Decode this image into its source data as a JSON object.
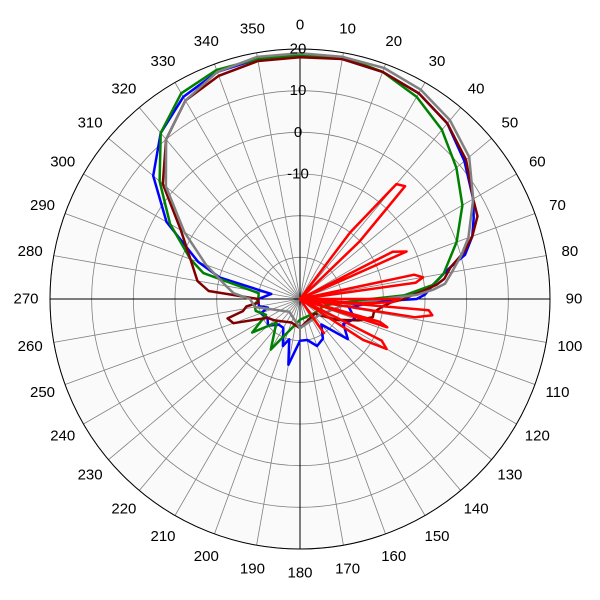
{
  "chart_data": {
    "type": "polar-line",
    "title": "",
    "angular_axis": {
      "unit": "degrees",
      "direction": "clockwise",
      "zero_at": "top",
      "tick_step": 10,
      "tick_labels": [
        "0",
        "10",
        "20",
        "30",
        "40",
        "50",
        "60",
        "70",
        "80",
        "90",
        "100",
        "110",
        "120",
        "130",
        "140",
        "150",
        "160",
        "170",
        "180",
        "190",
        "200",
        "210",
        "220",
        "230",
        "240",
        "250",
        "260",
        "270",
        "280",
        "290",
        "300",
        "310",
        "320",
        "330",
        "340",
        "350"
      ]
    },
    "radial_axis": {
      "range": [
        -40,
        20
      ],
      "ticks": [
        -10,
        0,
        10,
        20
      ],
      "tick_labels": [
        "-10",
        "0",
        "10",
        "20"
      ],
      "rings": [
        -30,
        -20,
        -10,
        0,
        10,
        20
      ],
      "grid": true
    },
    "legend": "none",
    "series": [
      {
        "color": "#0000ff",
        "points": [
          [
            0,
            18.5
          ],
          [
            10,
            18.5
          ],
          [
            20,
            18
          ],
          [
            30,
            17
          ],
          [
            40,
            15
          ],
          [
            50,
            11.5
          ],
          [
            60,
            8
          ],
          [
            65,
            6
          ],
          [
            70,
            4
          ],
          [
            75,
            1
          ],
          [
            78,
            -3
          ],
          [
            80,
            -5
          ],
          [
            82,
            -6.5
          ],
          [
            84,
            -8
          ],
          [
            86,
            -9
          ],
          [
            88,
            -10
          ],
          [
            90,
            -12
          ],
          [
            92,
            -22
          ],
          [
            100,
            -28
          ],
          [
            110,
            -26
          ],
          [
            120,
            -28
          ],
          [
            130,
            -25
          ],
          [
            140,
            -32
          ],
          [
            150,
            -29
          ],
          [
            160,
            -28
          ],
          [
            170,
            -30
          ],
          [
            180,
            -30
          ],
          [
            190,
            -24
          ],
          [
            195,
            -30
          ],
          [
            200,
            -28
          ],
          [
            210,
            -32
          ],
          [
            220,
            -32
          ],
          [
            230,
            -30
          ],
          [
            240,
            -31
          ],
          [
            250,
            -30
          ],
          [
            255,
            -32
          ],
          [
            260,
            -30
          ],
          [
            265,
            -30
          ],
          [
            270,
            -30
          ],
          [
            280,
            -33
          ],
          [
            285,
            -20
          ],
          [
            290,
            -14
          ],
          [
            300,
            -3
          ],
          [
            310,
            6
          ],
          [
            320,
            12
          ],
          [
            330,
            16
          ],
          [
            340,
            18
          ],
          [
            350,
            18.5
          ],
          [
            360,
            18.5
          ]
        ]
      },
      {
        "color": "#008000",
        "points": [
          [
            0,
            18.5
          ],
          [
            10,
            19
          ],
          [
            20,
            18
          ],
          [
            30,
            16
          ],
          [
            40,
            13
          ],
          [
            50,
            9
          ],
          [
            60,
            5
          ],
          [
            70,
            0
          ],
          [
            80,
            -5
          ],
          [
            84,
            -8
          ],
          [
            88,
            -15
          ],
          [
            90,
            -23
          ],
          [
            95,
            -30
          ],
          [
            105,
            -34
          ],
          [
            130,
            -35
          ],
          [
            180,
            -35
          ],
          [
            210,
            -26
          ],
          [
            225,
            -32
          ],
          [
            235,
            -26
          ],
          [
            245,
            -31
          ],
          [
            255,
            -29
          ],
          [
            262,
            -29
          ],
          [
            270,
            -30
          ],
          [
            278,
            -30
          ],
          [
            285,
            -16
          ],
          [
            290,
            -12
          ],
          [
            300,
            -4
          ],
          [
            310,
            4
          ],
          [
            320,
            12
          ],
          [
            330,
            17
          ],
          [
            340,
            18.5
          ],
          [
            350,
            18.5
          ],
          [
            360,
            18.5
          ]
        ]
      },
      {
        "color": "#800000",
        "points": [
          [
            0,
            18
          ],
          [
            10,
            18.5
          ],
          [
            20,
            18
          ],
          [
            30,
            17
          ],
          [
            40,
            15
          ],
          [
            50,
            12
          ],
          [
            60,
            8
          ],
          [
            65,
            7
          ],
          [
            70,
            4
          ],
          [
            74,
            1
          ],
          [
            78,
            -3
          ],
          [
            82,
            -5
          ],
          [
            84,
            -7
          ],
          [
            86,
            -10
          ],
          [
            88,
            -13
          ],
          [
            90,
            -15
          ],
          [
            92,
            -18
          ],
          [
            95,
            -20
          ],
          [
            100,
            -22
          ],
          [
            104,
            -22
          ],
          [
            110,
            -25
          ],
          [
            120,
            -30
          ],
          [
            135,
            -35
          ],
          [
            180,
            -33
          ],
          [
            200,
            -34
          ],
          [
            230,
            -32
          ],
          [
            240,
            -31
          ],
          [
            250,
            -23
          ],
          [
            255,
            -22
          ],
          [
            258,
            -26
          ],
          [
            262,
            -27
          ],
          [
            265,
            -30
          ],
          [
            270,
            -30
          ],
          [
            275,
            -18
          ],
          [
            280,
            -15
          ],
          [
            290,
            -12
          ],
          [
            300,
            -7
          ],
          [
            310,
            3
          ],
          [
            320,
            10
          ],
          [
            330,
            15
          ],
          [
            340,
            17
          ],
          [
            350,
            18
          ],
          [
            360,
            18
          ]
        ]
      },
      {
        "color": "#808080",
        "points": [
          [
            0,
            19
          ],
          [
            10,
            19
          ],
          [
            20,
            19
          ],
          [
            30,
            18
          ],
          [
            40,
            16
          ],
          [
            50,
            13
          ],
          [
            60,
            8
          ],
          [
            70,
            3
          ],
          [
            75,
            0
          ],
          [
            80,
            -3
          ],
          [
            84,
            -5
          ],
          [
            86,
            -8
          ],
          [
            88,
            -12
          ],
          [
            90,
            -20
          ],
          [
            100,
            -30
          ],
          [
            130,
            -34
          ],
          [
            180,
            -33
          ],
          [
            220,
            -36
          ],
          [
            260,
            -29
          ],
          [
            270,
            -28
          ],
          [
            275,
            -24
          ],
          [
            280,
            -22
          ],
          [
            290,
            -16
          ],
          [
            300,
            -8
          ],
          [
            310,
            2
          ],
          [
            320,
            10
          ],
          [
            330,
            15
          ],
          [
            340,
            18
          ],
          [
            350,
            19
          ],
          [
            360,
            19
          ]
        ]
      },
      {
        "color": "#ff0000",
        "points": [
          [
            0,
            -40
          ],
          [
            30,
            -40
          ],
          [
            37,
            -20
          ],
          [
            40,
            -4
          ],
          [
            43,
            -3
          ],
          [
            46,
            -20
          ],
          [
            50,
            -40
          ],
          [
            60,
            -40
          ],
          [
            63,
            -15
          ],
          [
            66,
            -12
          ],
          [
            70,
            -40
          ],
          [
            75,
            -40
          ],
          [
            78,
            -12
          ],
          [
            80,
            -10
          ],
          [
            82,
            -12
          ],
          [
            84,
            -40
          ],
          [
            88,
            -40
          ],
          [
            90,
            -16
          ],
          [
            92,
            -18
          ],
          [
            94,
            -25
          ],
          [
            96,
            -40
          ],
          [
            93,
            -40
          ],
          [
            95,
            -9
          ],
          [
            97,
            -8
          ],
          [
            99,
            -12
          ],
          [
            101,
            -40
          ],
          [
            102,
            -40
          ],
          [
            106,
            -20
          ],
          [
            108,
            -18
          ],
          [
            110,
            -40
          ],
          [
            112,
            -40
          ],
          [
            117,
            -18
          ],
          [
            120,
            -16
          ],
          [
            123,
            -22
          ],
          [
            125,
            -40
          ],
          [
            140,
            -40
          ],
          [
            145,
            -30
          ],
          [
            150,
            -40
          ],
          [
            180,
            -40
          ],
          [
            360,
            -40
          ]
        ]
      }
    ]
  }
}
